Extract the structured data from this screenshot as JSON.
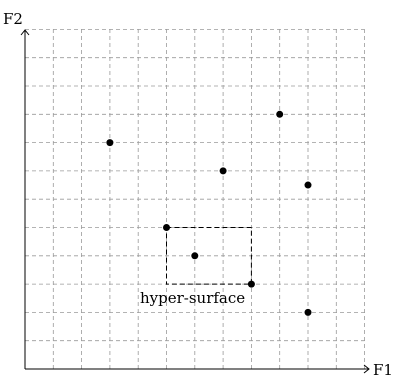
{
  "axes": {
    "x_label": "F1",
    "y_label": "F2"
  },
  "grid": {
    "cols": 12,
    "rows": 12,
    "style": "dashed"
  },
  "points": [
    {
      "gx": 3,
      "gy": 8
    },
    {
      "gx": 9,
      "gy": 9
    },
    {
      "gx": 7,
      "gy": 7
    },
    {
      "gx": 10,
      "gy": 6.5
    },
    {
      "gx": 5,
      "gy": 5
    },
    {
      "gx": 6,
      "gy": 4
    },
    {
      "gx": 8,
      "gy": 3
    },
    {
      "gx": 10,
      "gy": 2
    }
  ],
  "region": {
    "label": "hyper-surface",
    "gx_min": 5,
    "gx_max": 8,
    "gy_min": 3,
    "gy_max": 5
  },
  "colors": {
    "ink": "#000000",
    "grid": "#9a9a9a"
  }
}
